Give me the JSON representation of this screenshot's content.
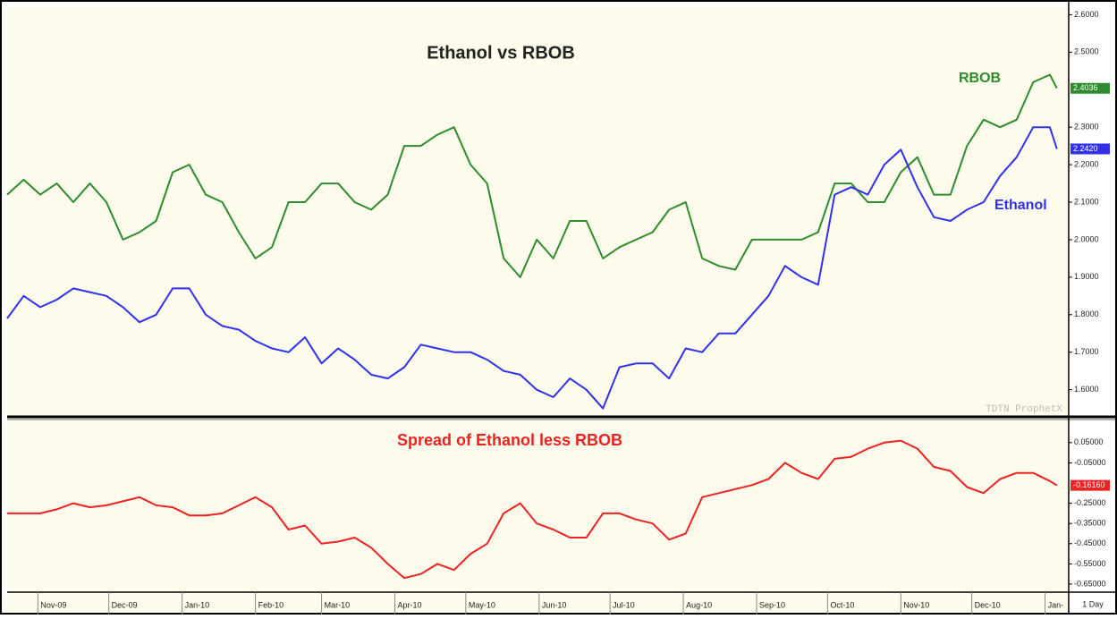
{
  "chart_data": [
    {
      "type": "line",
      "title": "Ethanol vs RBOB",
      "x": [
        18,
        25,
        32,
        39,
        46,
        53,
        60,
        67,
        74,
        81,
        88,
        95,
        102,
        109,
        116,
        123,
        130,
        137,
        144,
        151,
        158,
        165,
        172,
        179,
        186,
        193,
        200,
        207,
        214,
        221,
        228,
        235,
        242,
        249,
        256,
        263,
        270,
        277,
        284,
        291,
        298,
        305,
        312,
        319,
        326,
        333,
        340,
        347,
        354,
        361,
        368,
        375,
        382,
        389,
        396,
        403,
        410,
        417,
        424,
        431,
        438,
        445,
        452,
        459,
        462
      ],
      "xlim": [
        18,
        467
      ],
      "ylim": [
        1.53,
        2.62
      ],
      "yticks": [
        {
          "value": 2.6,
          "label": "2.6000"
        },
        {
          "value": 2.5,
          "label": "2.5000"
        },
        {
          "value": 2.3,
          "label": "2.3000"
        },
        {
          "value": 2.2,
          "label": "2.2000"
        },
        {
          "value": 2.1,
          "label": "2.1000"
        },
        {
          "value": 2.0,
          "label": "2.0000"
        },
        {
          "value": 1.9,
          "label": "1.9000"
        },
        {
          "value": 1.8,
          "label": "1.8000"
        },
        {
          "value": 1.7,
          "label": "1.7000"
        },
        {
          "value": 1.6,
          "label": "1.6000"
        }
      ],
      "series": [
        {
          "name": "RBOB",
          "color": "#2e8b2e",
          "values": [
            2.12,
            2.16,
            2.12,
            2.15,
            2.1,
            2.15,
            2.1,
            2.0,
            2.02,
            2.05,
            2.18,
            2.2,
            2.12,
            2.1,
            2.02,
            1.95,
            1.98,
            2.1,
            2.1,
            2.15,
            2.15,
            2.1,
            2.08,
            2.12,
            2.25,
            2.25,
            2.28,
            2.3,
            2.2,
            2.15,
            1.95,
            1.9,
            2.0,
            1.95,
            2.05,
            2.05,
            1.95,
            1.98,
            2.0,
            2.02,
            2.08,
            2.1,
            1.95,
            1.93,
            1.92,
            2.0,
            2.0,
            2.0,
            2.0,
            2.02,
            2.15,
            2.15,
            2.1,
            2.1,
            2.18,
            2.22,
            2.12,
            2.12,
            2.25,
            2.32,
            2.3,
            2.32,
            2.42,
            2.44,
            2.4036
          ],
          "value_labels": [
            null,
            null,
            null,
            null,
            null,
            null,
            null,
            null,
            null,
            null,
            null,
            null,
            null,
            null,
            null,
            null,
            null,
            null,
            null,
            null,
            null,
            null,
            null,
            null,
            null,
            null,
            null,
            null,
            null,
            null,
            null,
            null,
            null,
            null,
            null,
            null,
            null,
            null,
            null,
            null,
            null,
            null,
            null,
            null,
            null,
            null,
            null,
            null,
            null,
            null,
            null,
            null,
            null,
            null,
            null,
            null,
            null,
            null,
            null,
            null,
            null,
            null,
            null,
            null,
            "2.4036"
          ]
        },
        {
          "name": "Ethanol",
          "color": "#3030ee",
          "values": [
            1.79,
            1.85,
            1.82,
            1.84,
            1.87,
            1.86,
            1.85,
            1.82,
            1.78,
            1.8,
            1.87,
            1.87,
            1.8,
            1.77,
            1.76,
            1.73,
            1.71,
            1.7,
            1.74,
            1.67,
            1.71,
            1.68,
            1.64,
            1.63,
            1.66,
            1.72,
            1.71,
            1.7,
            1.7,
            1.68,
            1.65,
            1.64,
            1.6,
            1.58,
            1.63,
            1.6,
            1.55,
            1.66,
            1.67,
            1.67,
            1.63,
            1.71,
            1.7,
            1.75,
            1.75,
            1.8,
            1.85,
            1.93,
            1.9,
            1.88,
            2.12,
            2.14,
            2.12,
            2.2,
            2.24,
            2.14,
            2.06,
            2.05,
            2.08,
            2.1,
            2.17,
            2.22,
            2.3,
            2.3,
            2.242
          ],
          "value_labels": [
            null,
            null,
            null,
            null,
            null,
            null,
            null,
            null,
            null,
            null,
            null,
            null,
            null,
            null,
            null,
            null,
            null,
            null,
            null,
            null,
            null,
            null,
            null,
            null,
            null,
            null,
            null,
            null,
            null,
            null,
            null,
            null,
            null,
            null,
            null,
            null,
            null,
            null,
            null,
            null,
            null,
            null,
            null,
            null,
            null,
            null,
            null,
            null,
            null,
            null,
            null,
            null,
            null,
            null,
            null,
            null,
            null,
            null,
            null,
            null,
            null,
            null,
            null,
            null,
            "2.2420"
          ]
        }
      ]
    },
    {
      "type": "line",
      "title": "Spread of Ethanol less RBOB",
      "x": [
        18,
        25,
        32,
        39,
        46,
        53,
        60,
        67,
        74,
        81,
        88,
        95,
        102,
        109,
        116,
        123,
        130,
        137,
        144,
        151,
        158,
        165,
        172,
        179,
        186,
        193,
        200,
        207,
        214,
        221,
        228,
        235,
        242,
        249,
        256,
        263,
        270,
        277,
        284,
        291,
        298,
        305,
        312,
        319,
        326,
        333,
        340,
        347,
        354,
        361,
        368,
        375,
        382,
        389,
        396,
        403,
        410,
        417,
        424,
        431,
        438,
        445,
        452,
        459,
        462
      ],
      "xlim": [
        18,
        467
      ],
      "xticks": [
        {
          "value": 31,
          "label": "Nov-09"
        },
        {
          "value": 61,
          "label": "Dec-09"
        },
        {
          "value": 92,
          "label": "Jan-10"
        },
        {
          "value": 123,
          "label": "Feb-10"
        },
        {
          "value": 151,
          "label": "Mar-10"
        },
        {
          "value": 182,
          "label": "Apr-10"
        },
        {
          "value": 212,
          "label": "May-10"
        },
        {
          "value": 243,
          "label": "Jun-10"
        },
        {
          "value": 273,
          "label": "Jul-10"
        },
        {
          "value": 304,
          "label": "Aug-10"
        },
        {
          "value": 335,
          "label": "Sep-10"
        },
        {
          "value": 365,
          "label": "Oct-10"
        },
        {
          "value": 396,
          "label": "Nov-10"
        },
        {
          "value": 426,
          "label": "Dec-10"
        },
        {
          "value": 457,
          "label": "Jan-"
        }
      ],
      "ylim": [
        -0.69,
        0.16
      ],
      "yticks": [
        {
          "value": 0.05,
          "label": "0.05000"
        },
        {
          "value": -0.05,
          "label": "-0.05000"
        },
        {
          "value": -0.25,
          "label": "-0.25000"
        },
        {
          "value": -0.35,
          "label": "-0.35000"
        },
        {
          "value": -0.45,
          "label": "-0.45000"
        },
        {
          "value": -0.55,
          "label": "-0.55000"
        },
        {
          "value": -0.65,
          "label": "-0.65000"
        }
      ],
      "series": [
        {
          "name": "Spread",
          "color": "#ee2222",
          "values": [
            -0.3,
            -0.3,
            -0.3,
            -0.28,
            -0.25,
            -0.27,
            -0.26,
            -0.24,
            -0.22,
            -0.26,
            -0.27,
            -0.31,
            -0.31,
            -0.3,
            -0.26,
            -0.22,
            -0.27,
            -0.38,
            -0.36,
            -0.45,
            -0.44,
            -0.42,
            -0.47,
            -0.55,
            -0.62,
            -0.6,
            -0.55,
            -0.58,
            -0.5,
            -0.45,
            -0.3,
            -0.25,
            -0.35,
            -0.38,
            -0.42,
            -0.42,
            -0.3,
            -0.3,
            -0.33,
            -0.35,
            -0.43,
            -0.4,
            -0.22,
            -0.2,
            -0.18,
            -0.16,
            -0.13,
            -0.05,
            -0.1,
            -0.13,
            -0.03,
            -0.02,
            0.02,
            0.05,
            0.06,
            0.02,
            -0.07,
            -0.09,
            -0.17,
            -0.2,
            -0.13,
            -0.1,
            -0.1,
            -0.14,
            -0.1616
          ],
          "value_labels": [
            null,
            null,
            null,
            null,
            null,
            null,
            null,
            null,
            null,
            null,
            null,
            null,
            null,
            null,
            null,
            null,
            null,
            null,
            null,
            null,
            null,
            null,
            null,
            null,
            null,
            null,
            null,
            null,
            null,
            null,
            null,
            null,
            null,
            null,
            null,
            null,
            null,
            null,
            null,
            null,
            null,
            null,
            null,
            null,
            null,
            null,
            null,
            null,
            null,
            null,
            null,
            null,
            null,
            null,
            null,
            null,
            null,
            null,
            null,
            null,
            null,
            null,
            null,
            null,
            "-0.16160"
          ]
        }
      ]
    }
  ],
  "watermark": "TDTN ProphetX",
  "interval_label": "1 Day"
}
